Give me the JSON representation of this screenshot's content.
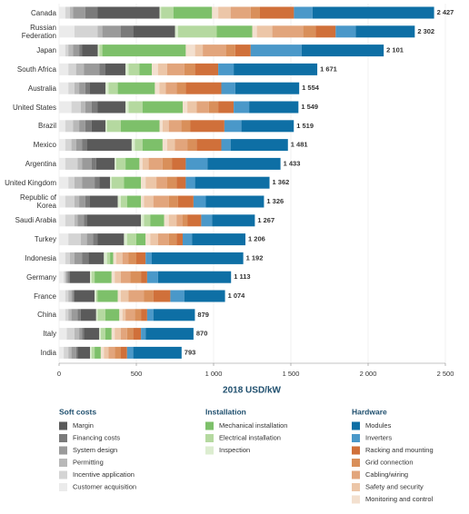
{
  "chart_data": {
    "type": "stacked-bar-horizontal",
    "xlabel": "2018 USD/kW",
    "categories": [
      "Canada",
      "Russian Federation",
      "Japan",
      "South Africa",
      "Australia",
      "United States",
      "Brazil",
      "Mexico",
      "Argentina",
      "United Kingdom",
      "Republic of Korea",
      "Saudi Arabia",
      "Turkey",
      "Indonesia",
      "Germany",
      "France",
      "China",
      "Italy",
      "India"
    ],
    "totals": [
      2427,
      2302,
      2101,
      1671,
      1554,
      1549,
      1519,
      1481,
      1433,
      1362,
      1326,
      1267,
      1206,
      1192,
      1113,
      1074,
      879,
      870,
      793
    ],
    "total_labels": [
      "2 427",
      "2 302",
      "2 101",
      "1 671",
      "1 554",
      "1 549",
      "1 519",
      "1 481",
      "1 433",
      "1 362",
      "1 326",
      "1 267",
      "1 206",
      "1 192",
      "1 113",
      "1 074",
      "879",
      "870",
      "793"
    ],
    "xlim": [
      0,
      2500
    ],
    "xticks": [
      0,
      500,
      {
        "value": 1000,
        "label": "1 000"
      },
      {
        "value": 1500,
        "label": "1 500"
      },
      {
        "value": 2000,
        "label": "2 000"
      },
      {
        "value": 2500,
        "label": "2 500"
      }
    ],
    "grid": true,
    "groups": [
      {
        "name": "Soft costs",
        "series": [
          {
            "name": "Margin",
            "color": "#5a5a5a",
            "values": [
              400,
              270,
              100,
              130,
              100,
              180,
              90,
              290,
              120,
              70,
              180,
              350,
              170,
              100,
              130,
              130,
              100,
              100,
              80
            ]
          },
          {
            "name": "Financing costs",
            "color": "#7a7a7a",
            "values": [
              80,
              80,
              20,
              40,
              30,
              40,
              40,
              30,
              30,
              30,
              30,
              20,
              30,
              40,
              10,
              10,
              20,
              10,
              10
            ]
          },
          {
            "name": "System design",
            "color": "#9a9a9a",
            "values": [
              80,
              120,
              40,
              100,
              40,
              40,
              40,
              40,
              60,
              80,
              40,
              40,
              40,
              50,
              10,
              10,
              40,
              20,
              30
            ]
          },
          {
            "name": "Permitting",
            "color": "#b8b8b8",
            "values": [
              20,
              30,
              30,
              50,
              30,
              30,
              40,
              30,
              30,
              50,
              30,
              20,
              40,
              30,
              10,
              20,
              20,
              30,
              20
            ]
          },
          {
            "name": "Incentive application",
            "color": "#d4d4d4",
            "values": [
              30,
              150,
              20,
              50,
              40,
              60,
              50,
              40,
              80,
              40,
              60,
              60,
              80,
              30,
              10,
              20,
              20,
              50,
              30
            ]
          },
          {
            "name": "Customer acquisition",
            "color": "#ebebeb",
            "values": [
              40,
              100,
              40,
              60,
              60,
              80,
              40,
              40,
              40,
              60,
              40,
              40,
              60,
              40,
              30,
              40,
              40,
              50,
              30
            ]
          }
        ]
      },
      {
        "name": "Installation",
        "series": [
          {
            "name": "Mechanical installation",
            "color": "#7dc06a",
            "values": [
              250,
              230,
              540,
              80,
              240,
              260,
              250,
              130,
              90,
              110,
              90,
              90,
              60,
              20,
              110,
              130,
              90,
              40,
              40
            ]
          },
          {
            "name": "Electrical installation",
            "color": "#b5d9a0",
            "values": [
              80,
              250,
              20,
              70,
              60,
              90,
              90,
              50,
              60,
              80,
              40,
              40,
              60,
              20,
              20,
              10,
              50,
              30,
              20
            ]
          },
          {
            "name": "Inspection",
            "color": "#dcedd0",
            "values": [
              10,
              20,
              10,
              20,
              20,
              20,
              10,
              20,
              10,
              10,
              20,
              20,
              20,
              20,
              10,
              10,
              10,
              10,
              10
            ]
          }
        ]
      },
      {
        "name": "Hardware",
        "series": [
          {
            "name": "Modules",
            "color": "#0e6fa5",
            "values": [
              787,
              382,
              531,
              541,
              414,
              319,
              339,
              371,
              473,
              482,
              376,
              277,
              346,
              592,
              473,
              264,
              269,
              310,
              313
            ]
          },
          {
            "name": "Inverters",
            "color": "#4a98c9",
            "values": [
              120,
              130,
              330,
              100,
              90,
              100,
              110,
              60,
              140,
              60,
              80,
              70,
              60,
              40,
              70,
              90,
              40,
              30,
              40
            ]
          },
          {
            "name": "Racking and mounting",
            "color": "#d0703a",
            "values": [
              220,
              130,
              100,
              150,
              230,
              100,
              220,
              160,
              90,
              60,
              100,
              90,
              40,
              60,
              40,
              110,
              40,
              50,
              40
            ]
          },
          {
            "name": "Grid connection",
            "color": "#d98f5a",
            "values": [
              60,
              80,
              60,
              70,
              60,
              60,
              60,
              60,
              60,
              60,
              60,
              30,
              50,
              50,
              70,
              60,
              40,
              40,
              40
            ]
          },
          {
            "name": "Cabling/wiring",
            "color": "#e2a57c",
            "values": [
              130,
              200,
              150,
              110,
              70,
              80,
              80,
              80,
              90,
              70,
              100,
              40,
              70,
              40,
              60,
              100,
              60,
              40,
              40
            ]
          },
          {
            "name": "Safety and security",
            "color": "#ecc6a8",
            "values": [
              80,
              100,
              50,
              60,
              40,
              60,
              40,
              50,
              40,
              70,
              60,
              50,
              50,
              40,
              40,
              50,
              20,
              40,
              30
            ]
          },
          {
            "name": "Monitoring and control",
            "color": "#f3e0cf",
            "values": [
              40,
              30,
              60,
              40,
              30,
              30,
              20,
              30,
              20,
              30,
              20,
              30,
              30,
              20,
              20,
              20,
              20,
              20,
              20
            ]
          }
        ]
      }
    ]
  }
}
